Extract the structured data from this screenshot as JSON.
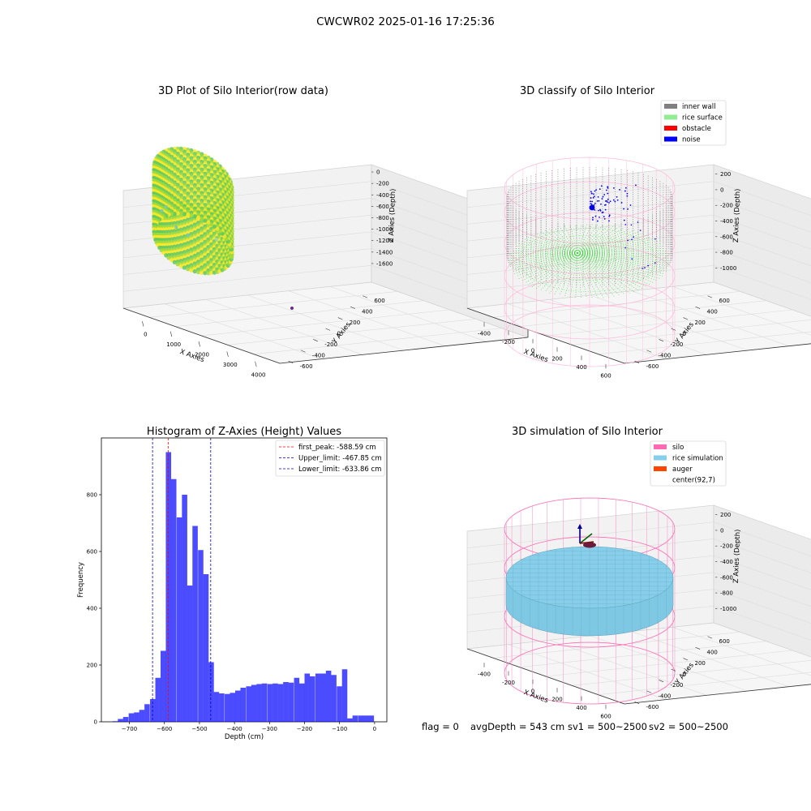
{
  "figure": {
    "suptitle": "CWCWR02 2025-01-16 17:25:36",
    "footer": {
      "flag": "flag = 0",
      "avg_depth": "avgDepth = 543 cm",
      "sv1": "sv1 = 500~2500",
      "sv2": "sv2 = 500~2500"
    }
  },
  "chart_data": [
    {
      "id": "raw3d",
      "type": "scatter",
      "title": "3D Plot of Silo Interior(row data)",
      "xlabel": "X Axies",
      "ylabel": "Y Axies",
      "zlabel": "Z Axies (Depth)",
      "x_ticks": [
        "0",
        "1000",
        "2000",
        "3000",
        "4000"
      ],
      "y_ticks": [
        "-600",
        "-400",
        "-200",
        "0",
        "200",
        "400",
        "600"
      ],
      "z_ticks": [
        "0",
        "-200",
        "-400",
        "-600",
        "-800",
        "-1000",
        "-1200",
        "-1400",
        "-1600"
      ],
      "colormap": [
        "#440154",
        "#21918c",
        "#5ec962",
        "#a0da39",
        "#fde725"
      ],
      "outliers": [
        {
          "x": 900,
          "y": -150,
          "z": -300,
          "color": "#7fc8a9"
        },
        {
          "x": 1000,
          "y": -120,
          "z": -250,
          "color": "#7fc8a9"
        },
        {
          "x": 1200,
          "y": -30,
          "z": -500,
          "color": "#7fc8a9"
        },
        {
          "x": 1400,
          "y": 100,
          "z": -600,
          "color": "#7fc8a9"
        },
        {
          "x": 2300,
          "y": 100,
          "z": -650,
          "color": "#9dd6b4"
        },
        {
          "x": 4300,
          "y": 400,
          "z": -1500,
          "color": "#6a2c80"
        }
      ]
    },
    {
      "id": "classify3d",
      "type": "scatter",
      "title": "3D classify of Silo Interior",
      "xlabel": "X Axies",
      "ylabel": "Y Axies",
      "zlabel": "Z Axies (Depth)",
      "x_ticks": [
        "-400",
        "-200",
        "0",
        "200",
        "400",
        "600"
      ],
      "y_ticks": [
        "-600",
        "-400",
        "-200",
        "0",
        "200",
        "400",
        "600"
      ],
      "z_ticks": [
        "200",
        "0",
        "-200",
        "-400",
        "-600",
        "-800",
        "-1000"
      ],
      "legend": [
        {
          "label": "inner wall",
          "color": "#808080"
        },
        {
          "label": "rice surface",
          "color": "#90ee90"
        },
        {
          "label": "obstacle",
          "color": "#ff0000"
        },
        {
          "label": "noise",
          "color": "#0000ff"
        }
      ],
      "legend_position": "top-right"
    },
    {
      "id": "histogram",
      "type": "bar",
      "title": "Histogram of Z-Axies (Height) Values",
      "xlabel": "Depth (cm)",
      "ylabel": "Frequency",
      "xlim": [
        -780,
        35
      ],
      "ylim": [
        0,
        1000
      ],
      "x_ticks": [
        -700,
        -600,
        -500,
        -400,
        -300,
        -200,
        -100,
        0
      ],
      "y_ticks": [
        0,
        200,
        400,
        600,
        800
      ],
      "bar_color": "#0000ff",
      "bin_width": 15.2,
      "bin_starts": [
        -748,
        -733,
        -718,
        -702,
        -687,
        -672,
        -657,
        -641,
        -626,
        -611,
        -596,
        -581,
        -565,
        -550,
        -535,
        -520,
        -504,
        -489,
        -474,
        -459,
        -444,
        -428,
        -413,
        -398,
        -383,
        -367,
        -352,
        -337,
        -322,
        -306,
        -291,
        -276,
        -261,
        -246,
        -230,
        -215,
        -200,
        -185,
        -169,
        -154,
        -139,
        -124,
        -108,
        -93,
        -78,
        -63,
        -47,
        -32,
        -17
      ],
      "values": [
        2,
        10,
        17,
        30,
        33,
        42,
        62,
        80,
        155,
        250,
        950,
        855,
        720,
        800,
        480,
        690,
        605,
        520,
        210,
        105,
        100,
        98,
        102,
        110,
        120,
        125,
        130,
        133,
        135,
        133,
        135,
        133,
        140,
        138,
        155,
        135,
        170,
        160,
        170,
        170,
        180,
        165,
        125,
        185,
        12,
        22,
        22,
        22,
        22
      ],
      "lines": [
        {
          "label": "first_peak: -588.59 cm",
          "x": -588.59,
          "color": "#ff0000"
        },
        {
          "label": "Upper_limit: -467.85 cm",
          "x": -467.85,
          "color": "#0000cc"
        },
        {
          "label": "Lower_limit: -633.86 cm",
          "x": -633.86,
          "color": "#0000cc"
        }
      ],
      "legend_position": "top-right"
    },
    {
      "id": "simulation3d",
      "type": "surface",
      "title": "3D simulation of Silo Interior",
      "xlabel": "X Axies",
      "ylabel": "Y Axies",
      "zlabel": "Z Axies (Depth)",
      "x_ticks": [
        "-400",
        "-200",
        "0",
        "200",
        "400",
        "600"
      ],
      "y_ticks": [
        "-600",
        "-400",
        "-200",
        "0",
        "200",
        "400",
        "600"
      ],
      "z_ticks": [
        "200",
        "0",
        "-200",
        "-400",
        "-600",
        "-800",
        "-1000"
      ],
      "legend": [
        {
          "label": "silo",
          "color": "#ff69b4"
        },
        {
          "label": "rice simulation",
          "color": "#87ceeb"
        },
        {
          "label": "auger",
          "color": "#ff4500"
        },
        {
          "label": "center(92,7)",
          "color": "#ffffff"
        }
      ],
      "legend_position": "top-right"
    }
  ]
}
